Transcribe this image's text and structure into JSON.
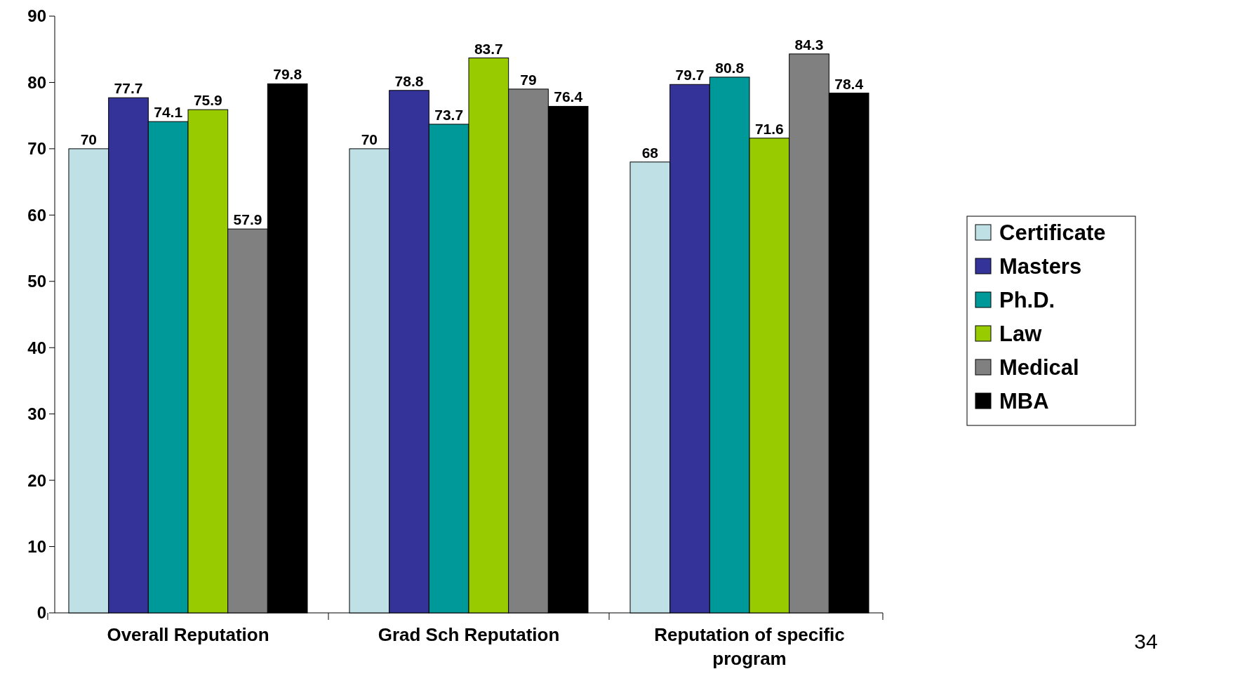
{
  "chart_data": {
    "type": "bar",
    "categories": [
      "Overall Reputation",
      "Grad Sch Reputation",
      "Reputation of specific program"
    ],
    "series": [
      {
        "name": "Certificate",
        "color": "#bfe1e6",
        "values": [
          70,
          70,
          68
        ]
      },
      {
        "name": "Masters",
        "color": "#333399",
        "values": [
          77.7,
          78.8,
          79.7
        ]
      },
      {
        "name": "Ph.D.",
        "color": "#009999",
        "values": [
          74.1,
          73.7,
          80.8
        ]
      },
      {
        "name": "Law",
        "color": "#99cc00",
        "values": [
          75.9,
          83.7,
          71.6
        ]
      },
      {
        "name": "Medical",
        "color": "#808080",
        "values": [
          57.9,
          79,
          84.3
        ]
      },
      {
        "name": "MBA",
        "color": "#000000",
        "values": [
          79.8,
          76.4,
          78.4
        ]
      }
    ],
    "ylim": [
      0,
      90
    ],
    "yticks": [
      0,
      10,
      20,
      30,
      40,
      50,
      60,
      70,
      80,
      90
    ],
    "data_labels": true,
    "legend": "right",
    "grid": false,
    "annotations": [
      "34"
    ]
  }
}
